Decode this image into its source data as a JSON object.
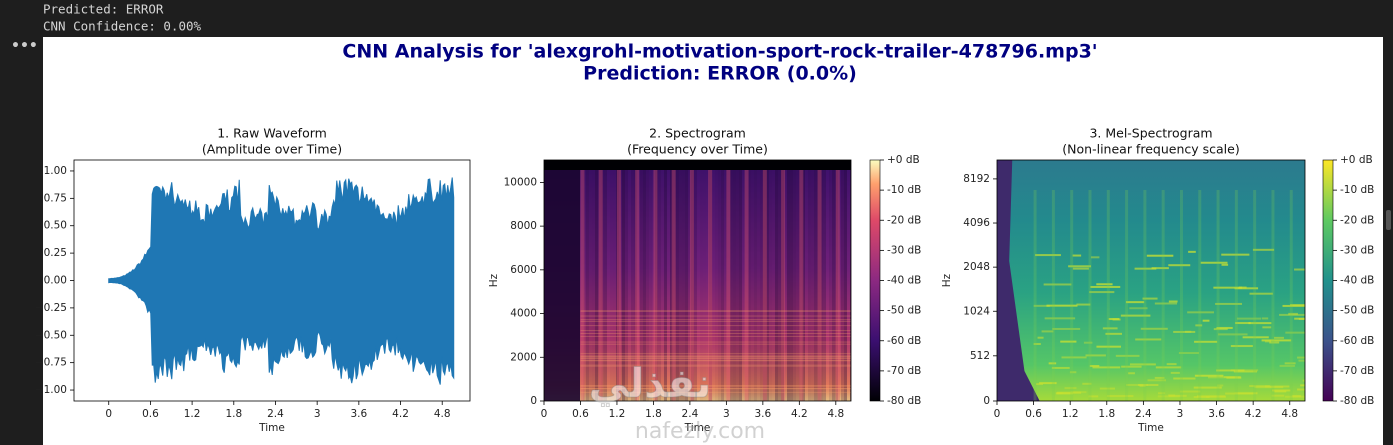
{
  "output": {
    "lines": [
      "Predicted: ERROR",
      "CNN Confidence: 0.00%"
    ]
  },
  "watermark": {
    "arabic": "نفذلي",
    "latin": "nafezly.com"
  },
  "figure": {
    "title": "CNN Analysis for 'alexgrohl-motivation-sport-rock-trailer-478796.mp3'",
    "subtitle": "Prediction: ERROR (0.0%)",
    "panels": [
      {
        "type": "waveform",
        "title": "1. Raw Waveform",
        "subtitle": "(Amplitude over Time)",
        "xlabel": "Time",
        "xlim": [
          -0.5,
          5.2
        ],
        "xticks": [
          0,
          0.6,
          1.2,
          1.8,
          2.4,
          3,
          3.6,
          4.2,
          4.8
        ],
        "ylim": [
          -1.1,
          1.1
        ],
        "yticks": [
          {
            "value": -1,
            "label": "−1.00"
          },
          {
            "value": -0.75,
            "label": "−0.75"
          },
          {
            "value": -0.5,
            "label": "−0.50"
          },
          {
            "value": -0.25,
            "label": "−0.25"
          },
          {
            "value": 0,
            "label": "0.00"
          },
          {
            "value": 0.25,
            "label": "0.25"
          },
          {
            "value": 0.5,
            "label": "0.50"
          },
          {
            "value": 0.75,
            "label": "0.75"
          },
          {
            "value": 1,
            "label": "1.00"
          }
        ],
        "color": "#1f77b4"
      },
      {
        "type": "spectrogram",
        "title": "2. Spectrogram",
        "subtitle": "(Frequency over Time)",
        "xlabel": "Time",
        "ylabel": "Hz",
        "xlim": [
          0,
          5.05
        ],
        "xticks": [
          0,
          0.6,
          1.2,
          1.8,
          2.4,
          3,
          3.6,
          4.2,
          4.8
        ],
        "ylim": [
          0,
          11025
        ],
        "yticks": [
          0,
          2000,
          4000,
          6000,
          8000,
          10000
        ],
        "colormap": "magma",
        "colorbar": {
          "lim": [
            -80,
            0
          ],
          "ticks": [
            {
              "value": -80,
              "label": "-80 dB"
            },
            {
              "value": -70,
              "label": "-70 dB"
            },
            {
              "value": -60,
              "label": "-60 dB"
            },
            {
              "value": -50,
              "label": "-50 dB"
            },
            {
              "value": -40,
              "label": "-40 dB"
            },
            {
              "value": -30,
              "label": "-30 dB"
            },
            {
              "value": -20,
              "label": "-20 dB"
            },
            {
              "value": -10,
              "label": "-10 dB"
            },
            {
              "value": 0,
              "label": "+0 dB"
            }
          ]
        }
      },
      {
        "type": "mel",
        "title": "3. Mel-Spectrogram",
        "subtitle": "(Non-linear frequency scale)",
        "xlabel": "Time",
        "ylabel": "Hz",
        "xlim": [
          0,
          5.05
        ],
        "xticks": [
          0,
          0.6,
          1.2,
          1.8,
          2.4,
          3,
          3.6,
          4.2,
          4.8
        ],
        "ylim": [
          0,
          11025
        ],
        "yscale": "symlog",
        "linthresh": 1000,
        "yticks": [
          0,
          512,
          1024,
          2048,
          4096,
          8192
        ],
        "colormap": "viridis",
        "colorbar": {
          "lim": [
            -80,
            0
          ],
          "ticks": [
            {
              "value": -80,
              "label": "-80 dB"
            },
            {
              "value": -70,
              "label": "-70 dB"
            },
            {
              "value": -60,
              "label": "-60 dB"
            },
            {
              "value": -50,
              "label": "-50 dB"
            },
            {
              "value": -40,
              "label": "-40 dB"
            },
            {
              "value": -30,
              "label": "-30 dB"
            },
            {
              "value": -20,
              "label": "-20 dB"
            },
            {
              "value": -10,
              "label": "-10 dB"
            },
            {
              "value": 0,
              "label": "+0 dB"
            }
          ]
        }
      }
    ]
  }
}
